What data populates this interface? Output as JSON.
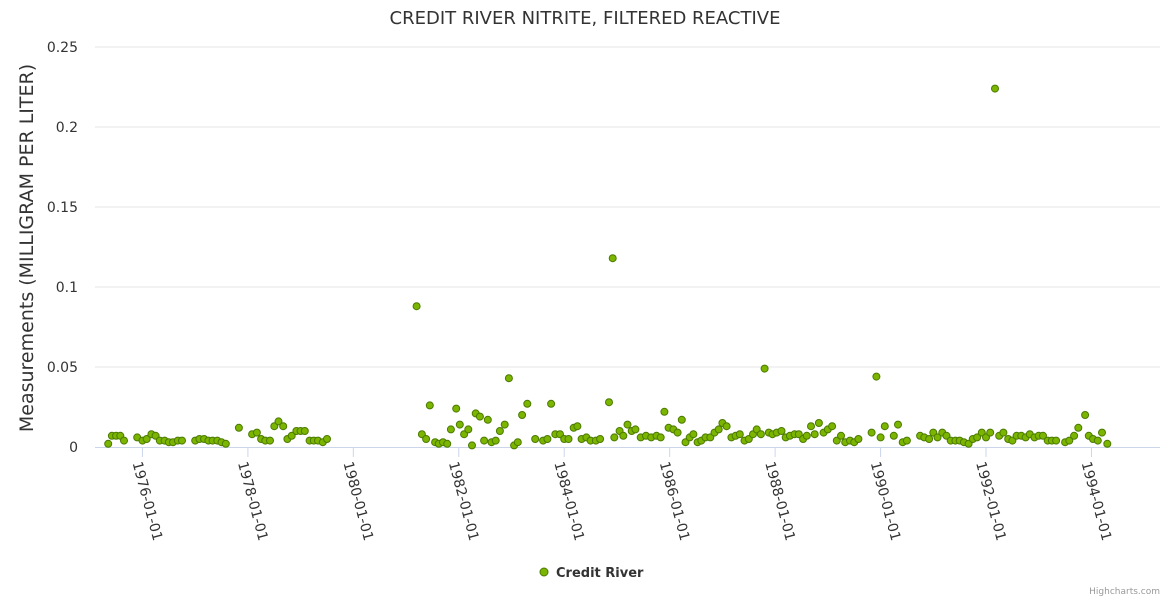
{
  "chart_data": {
    "type": "scatter",
    "title": "CREDIT RIVER NITRITE, FILTERED REACTIVE",
    "ylabel": "Measurements (MILLIGRAM PER LITER)",
    "xlabel": "",
    "ylim": [
      0,
      0.25
    ],
    "yticks": [
      0,
      0.05,
      0.1,
      0.15,
      0.2,
      0.25
    ],
    "ytick_labels": [
      "0",
      "0.05",
      "0.1",
      "0.15",
      "0.2",
      "0.25"
    ],
    "xlim": [
      1975.1,
      1995.3
    ],
    "xticks": [
      1976,
      1978,
      1980,
      1982,
      1984,
      1986,
      1988,
      1990,
      1992,
      1994
    ],
    "xtick_labels": [
      "1976-01-01",
      "1978-01-01",
      "1980-01-01",
      "1982-01-01",
      "1984-01-01",
      "1986-01-01",
      "1988-01-01",
      "1990-01-01",
      "1992-01-01",
      "1994-01-01"
    ],
    "grid": true,
    "legend": "bottom-center",
    "credits": "Highcharts.com",
    "series": [
      {
        "name": "Credit River",
        "color": "#7cb500",
        "outline": "#4a7a00",
        "points": [
          [
            1975.35,
            0.002
          ],
          [
            1975.42,
            0.007
          ],
          [
            1975.5,
            0.007
          ],
          [
            1975.58,
            0.007
          ],
          [
            1975.65,
            0.004
          ],
          [
            1975.9,
            0.006
          ],
          [
            1976.0,
            0.004
          ],
          [
            1976.08,
            0.005
          ],
          [
            1976.17,
            0.008
          ],
          [
            1976.25,
            0.007
          ],
          [
            1976.33,
            0.004
          ],
          [
            1976.42,
            0.004
          ],
          [
            1976.5,
            0.003
          ],
          [
            1976.58,
            0.003
          ],
          [
            1976.67,
            0.004
          ],
          [
            1976.75,
            0.004
          ],
          [
            1977.0,
            0.004
          ],
          [
            1977.08,
            0.005
          ],
          [
            1977.17,
            0.005
          ],
          [
            1977.25,
            0.004
          ],
          [
            1977.33,
            0.004
          ],
          [
            1977.42,
            0.004
          ],
          [
            1977.5,
            0.003
          ],
          [
            1977.58,
            0.002
          ],
          [
            1977.83,
            0.012
          ],
          [
            1978.08,
            0.008
          ],
          [
            1978.17,
            0.009
          ],
          [
            1978.25,
            0.005
          ],
          [
            1978.33,
            0.004
          ],
          [
            1978.42,
            0.004
          ],
          [
            1978.5,
            0.013
          ],
          [
            1978.58,
            0.016
          ],
          [
            1978.67,
            0.013
          ],
          [
            1978.75,
            0.005
          ],
          [
            1978.83,
            0.007
          ],
          [
            1978.92,
            0.01
          ],
          [
            1979.0,
            0.01
          ],
          [
            1979.08,
            0.01
          ],
          [
            1979.17,
            0.004
          ],
          [
            1979.25,
            0.004
          ],
          [
            1979.33,
            0.004
          ],
          [
            1979.42,
            0.003
          ],
          [
            1979.5,
            0.005
          ],
          [
            1981.2,
            0.088
          ],
          [
            1981.3,
            0.008
          ],
          [
            1981.38,
            0.005
          ],
          [
            1981.45,
            0.026
          ],
          [
            1981.55,
            0.003
          ],
          [
            1981.62,
            0.002
          ],
          [
            1981.7,
            0.003
          ],
          [
            1981.78,
            0.002
          ],
          [
            1981.85,
            0.011
          ],
          [
            1981.95,
            0.024
          ],
          [
            1982.02,
            0.014
          ],
          [
            1982.1,
            0.008
          ],
          [
            1982.18,
            0.011
          ],
          [
            1982.25,
            0.001
          ],
          [
            1982.32,
            0.021
          ],
          [
            1982.4,
            0.019
          ],
          [
            1982.48,
            0.004
          ],
          [
            1982.55,
            0.017
          ],
          [
            1982.62,
            0.003
          ],
          [
            1982.7,
            0.004
          ],
          [
            1982.78,
            0.01
          ],
          [
            1982.87,
            0.014
          ],
          [
            1982.95,
            0.043
          ],
          [
            1983.05,
            0.001
          ],
          [
            1983.12,
            0.003
          ],
          [
            1983.2,
            0.02
          ],
          [
            1983.3,
            0.027
          ],
          [
            1983.45,
            0.005
          ],
          [
            1983.6,
            0.004
          ],
          [
            1983.68,
            0.005
          ],
          [
            1983.75,
            0.027
          ],
          [
            1983.83,
            0.008
          ],
          [
            1983.92,
            0.008
          ],
          [
            1984.0,
            0.005
          ],
          [
            1984.08,
            0.005
          ],
          [
            1984.18,
            0.012
          ],
          [
            1984.25,
            0.013
          ],
          [
            1984.33,
            0.005
          ],
          [
            1984.42,
            0.006
          ],
          [
            1984.5,
            0.004
          ],
          [
            1984.6,
            0.004
          ],
          [
            1984.68,
            0.005
          ],
          [
            1984.85,
            0.028
          ],
          [
            1984.92,
            0.118
          ],
          [
            1984.95,
            0.006
          ],
          [
            1985.05,
            0.01
          ],
          [
            1985.12,
            0.007
          ],
          [
            1985.2,
            0.014
          ],
          [
            1985.28,
            0.01
          ],
          [
            1985.35,
            0.011
          ],
          [
            1985.45,
            0.006
          ],
          [
            1985.55,
            0.007
          ],
          [
            1985.65,
            0.006
          ],
          [
            1985.75,
            0.007
          ],
          [
            1985.83,
            0.006
          ],
          [
            1985.9,
            0.022
          ],
          [
            1985.98,
            0.012
          ],
          [
            1986.07,
            0.011
          ],
          [
            1986.15,
            0.009
          ],
          [
            1986.23,
            0.017
          ],
          [
            1986.3,
            0.003
          ],
          [
            1986.38,
            0.006
          ],
          [
            1986.45,
            0.008
          ],
          [
            1986.53,
            0.003
          ],
          [
            1986.6,
            0.004
          ],
          [
            1986.68,
            0.006
          ],
          [
            1986.77,
            0.006
          ],
          [
            1986.85,
            0.009
          ],
          [
            1986.93,
            0.011
          ],
          [
            1987.0,
            0.015
          ],
          [
            1987.08,
            0.013
          ],
          [
            1987.17,
            0.006
          ],
          [
            1987.25,
            0.007
          ],
          [
            1987.33,
            0.008
          ],
          [
            1987.42,
            0.004
          ],
          [
            1987.5,
            0.005
          ],
          [
            1987.58,
            0.008
          ],
          [
            1987.65,
            0.011
          ],
          [
            1987.73,
            0.008
          ],
          [
            1987.8,
            0.049
          ],
          [
            1987.88,
            0.009
          ],
          [
            1987.95,
            0.008
          ],
          [
            1988.03,
            0.009
          ],
          [
            1988.12,
            0.01
          ],
          [
            1988.2,
            0.006
          ],
          [
            1988.28,
            0.007
          ],
          [
            1988.37,
            0.008
          ],
          [
            1988.45,
            0.008
          ],
          [
            1988.53,
            0.005
          ],
          [
            1988.6,
            0.007
          ],
          [
            1988.68,
            0.013
          ],
          [
            1988.75,
            0.008
          ],
          [
            1988.83,
            0.015
          ],
          [
            1988.92,
            0.009
          ],
          [
            1989.0,
            0.011
          ],
          [
            1989.08,
            0.013
          ],
          [
            1989.17,
            0.004
          ],
          [
            1989.25,
            0.007
          ],
          [
            1989.33,
            0.003
          ],
          [
            1989.42,
            0.004
          ],
          [
            1989.5,
            0.003
          ],
          [
            1989.58,
            0.005
          ],
          [
            1989.83,
            0.009
          ],
          [
            1989.92,
            0.044
          ],
          [
            1990.0,
            0.006
          ],
          [
            1990.08,
            0.013
          ],
          [
            1990.25,
            0.007
          ],
          [
            1990.33,
            0.014
          ],
          [
            1990.42,
            0.003
          ],
          [
            1990.5,
            0.004
          ],
          [
            1990.75,
            0.007
          ],
          [
            1990.83,
            0.006
          ],
          [
            1990.92,
            0.005
          ],
          [
            1991.0,
            0.009
          ],
          [
            1991.08,
            0.006
          ],
          [
            1991.17,
            0.009
          ],
          [
            1991.25,
            0.007
          ],
          [
            1991.33,
            0.004
          ],
          [
            1991.42,
            0.004
          ],
          [
            1991.5,
            0.004
          ],
          [
            1991.58,
            0.003
          ],
          [
            1991.67,
            0.002
          ],
          [
            1991.75,
            0.005
          ],
          [
            1991.83,
            0.006
          ],
          [
            1991.92,
            0.009
          ],
          [
            1992.0,
            0.006
          ],
          [
            1992.08,
            0.009
          ],
          [
            1992.17,
            0.224
          ],
          [
            1992.25,
            0.007
          ],
          [
            1992.33,
            0.009
          ],
          [
            1992.42,
            0.005
          ],
          [
            1992.5,
            0.004
          ],
          [
            1992.58,
            0.007
          ],
          [
            1992.67,
            0.007
          ],
          [
            1992.75,
            0.006
          ],
          [
            1992.83,
            0.008
          ],
          [
            1992.92,
            0.006
          ],
          [
            1993.0,
            0.007
          ],
          [
            1993.08,
            0.007
          ],
          [
            1993.17,
            0.004
          ],
          [
            1993.25,
            0.004
          ],
          [
            1993.33,
            0.004
          ],
          [
            1993.5,
            0.003
          ],
          [
            1993.58,
            0.004
          ],
          [
            1993.67,
            0.007
          ],
          [
            1993.75,
            0.012
          ],
          [
            1993.88,
            0.02
          ],
          [
            1993.95,
            0.007
          ],
          [
            1994.03,
            0.005
          ],
          [
            1994.12,
            0.004
          ],
          [
            1994.2,
            0.009
          ],
          [
            1994.3,
            0.002
          ]
        ]
      }
    ]
  }
}
